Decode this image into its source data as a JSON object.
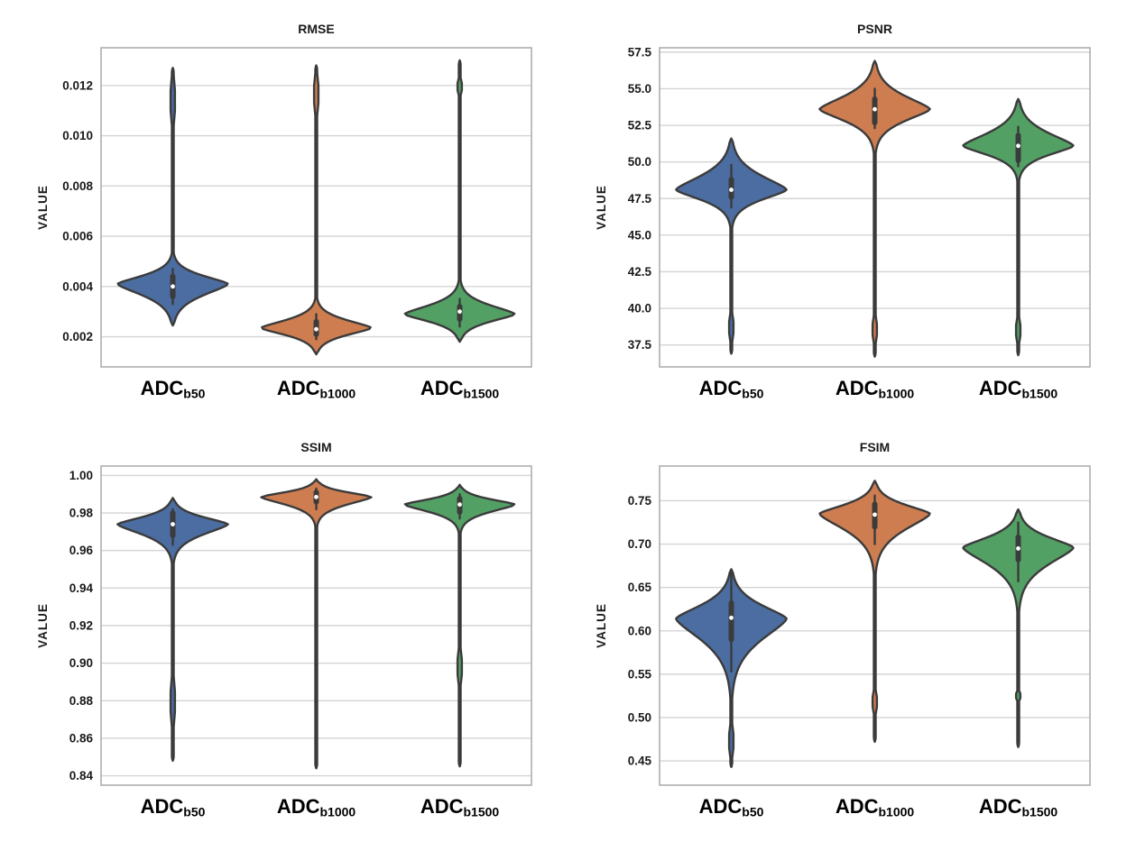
{
  "figure": {
    "background": "#ffffff",
    "rows": 2,
    "cols": 2,
    "panel_order": [
      "RMSE",
      "PSNR",
      "SSIM",
      "FSIM"
    ]
  },
  "palette": {
    "blue": "#4B6DA1",
    "orange": "#CE7D50",
    "green": "#53A065",
    "outline": "#3b3b3b",
    "grid": "#d4d4d4",
    "frame": "#aeaeae",
    "text": "#1a1a1a",
    "category_text": "#000000",
    "median_dot": "#ffffff"
  },
  "categories": [
    {
      "base": "ADC",
      "sub": "b50"
    },
    {
      "base": "ADC",
      "sub": "b1000"
    },
    {
      "base": "ADC",
      "sub": "b1500"
    }
  ],
  "chart_data": [
    {
      "type": "violin",
      "title": "RMSE",
      "ylabel": "VALUE",
      "grid": true,
      "legend": false,
      "ylim": [
        0.0008,
        0.0135
      ],
      "yticks": [
        {
          "v": 0.002,
          "label": "0.002"
        },
        {
          "v": 0.004,
          "label": "0.004"
        },
        {
          "v": 0.006,
          "label": "0.006"
        },
        {
          "v": 0.008,
          "label": "0.008"
        },
        {
          "v": 0.01,
          "label": "0.010"
        },
        {
          "v": 0.012,
          "label": "0.012"
        }
      ],
      "violins": [
        {
          "category": "ADC_b50",
          "color": "blue",
          "tail_min": 0.00245,
          "tail_max": 0.0127,
          "body_min": 0.00245,
          "body_max": 0.0053,
          "peak": 0.0041,
          "q1": 0.0036,
          "q3": 0.0044,
          "median": 0.004,
          "whisker_lo": 0.0033,
          "whisker_hi": 0.0047,
          "blob": [
            0.0104,
            0.0124
          ]
        },
        {
          "category": "ADC_b1000",
          "color": "orange",
          "tail_min": 0.0013,
          "tail_max": 0.0128,
          "body_min": 0.0013,
          "body_max": 0.0035,
          "peak": 0.00235,
          "q1": 0.0021,
          "q3": 0.0026,
          "median": 0.0023,
          "whisker_lo": 0.0019,
          "whisker_hi": 0.0029,
          "blob": [
            0.0108,
            0.0125
          ]
        },
        {
          "category": "ADC_b1500",
          "color": "green",
          "tail_min": 0.0018,
          "tail_max": 0.013,
          "body_min": 0.0018,
          "body_max": 0.0042,
          "peak": 0.0029,
          "q1": 0.0027,
          "q3": 0.0032,
          "median": 0.003,
          "whisker_lo": 0.0024,
          "whisker_hi": 0.0035,
          "blob": [
            0.0116,
            0.0123
          ]
        }
      ]
    },
    {
      "type": "violin",
      "title": "PSNR",
      "ylabel": "VALUE",
      "grid": true,
      "legend": false,
      "ylim": [
        36.0,
        57.8
      ],
      "yticks": [
        {
          "v": 37.5,
          "label": "37.5"
        },
        {
          "v": 40.0,
          "label": "40.0"
        },
        {
          "v": 42.5,
          "label": "42.5"
        },
        {
          "v": 45.0,
          "label": "45.0"
        },
        {
          "v": 47.5,
          "label": "47.5"
        },
        {
          "v": 50.0,
          "label": "50.0"
        },
        {
          "v": 52.5,
          "label": "52.5"
        },
        {
          "v": 55.0,
          "label": "55.0"
        },
        {
          "v": 57.5,
          "label": "57.5"
        }
      ],
      "violins": [
        {
          "category": "ADC_b50",
          "color": "blue",
          "tail_min": 36.9,
          "tail_max": 51.6,
          "body_min": 45.6,
          "body_max": 51.6,
          "peak": 48.1,
          "q1": 47.6,
          "q3": 48.8,
          "median": 48.1,
          "whisker_lo": 46.9,
          "whisker_hi": 49.8,
          "blob": [
            37.7,
            39.7
          ]
        },
        {
          "category": "ADC_b1000",
          "color": "orange",
          "tail_min": 36.7,
          "tail_max": 56.9,
          "body_min": 50.7,
          "body_max": 56.9,
          "peak": 53.6,
          "q1": 52.7,
          "q3": 54.3,
          "median": 53.6,
          "whisker_lo": 52.3,
          "whisker_hi": 55.0,
          "blob": [
            37.6,
            39.5
          ]
        },
        {
          "category": "ADC_b1500",
          "color": "green",
          "tail_min": 36.8,
          "tail_max": 54.3,
          "body_min": 48.8,
          "body_max": 54.3,
          "peak": 51.1,
          "q1": 50.1,
          "q3": 51.8,
          "median": 51.1,
          "whisker_lo": 49.7,
          "whisker_hi": 52.4,
          "blob": [
            37.6,
            39.4
          ]
        }
      ]
    },
    {
      "type": "violin",
      "title": "SSIM",
      "ylabel": "VALUE",
      "grid": true,
      "legend": false,
      "ylim": [
        0.835,
        1.005
      ],
      "yticks": [
        {
          "v": 0.84,
          "label": "0.84"
        },
        {
          "v": 0.86,
          "label": "0.86"
        },
        {
          "v": 0.88,
          "label": "0.88"
        },
        {
          "v": 0.9,
          "label": "0.90"
        },
        {
          "v": 0.92,
          "label": "0.92"
        },
        {
          "v": 0.94,
          "label": "0.94"
        },
        {
          "v": 0.96,
          "label": "0.96"
        },
        {
          "v": 0.98,
          "label": "0.98"
        },
        {
          "v": 1.0,
          "label": "1.00"
        }
      ],
      "violins": [
        {
          "category": "ADC_b50",
          "color": "blue",
          "tail_min": 0.848,
          "tail_max": 0.988,
          "body_min": 0.954,
          "body_max": 0.988,
          "peak": 0.974,
          "q1": 0.968,
          "q3": 0.98,
          "median": 0.974,
          "whisker_lo": 0.963,
          "whisker_hi": 0.982,
          "blob": [
            0.866,
            0.893
          ]
        },
        {
          "category": "ADC_b1000",
          "color": "orange",
          "tail_min": 0.844,
          "tail_max": 0.998,
          "body_min": 0.9735,
          "body_max": 0.998,
          "peak": 0.9885,
          "q1": 0.986,
          "q3": 0.991,
          "median": 0.9885,
          "whisker_lo": 0.982,
          "whisker_hi": 0.993
        },
        {
          "category": "ADC_b1500",
          "color": "green",
          "tail_min": 0.845,
          "tail_max": 0.995,
          "body_min": 0.97,
          "body_max": 0.995,
          "peak": 0.9845,
          "q1": 0.9805,
          "q3": 0.9877,
          "median": 0.9845,
          "whisker_lo": 0.977,
          "whisker_hi": 0.99,
          "blob": [
            0.888,
            0.908
          ]
        }
      ]
    },
    {
      "type": "violin",
      "title": "FSIM",
      "ylabel": "VALUE",
      "grid": true,
      "legend": false,
      "ylim": [
        0.422,
        0.79
      ],
      "yticks": [
        {
          "v": 0.45,
          "label": "0.45"
        },
        {
          "v": 0.5,
          "label": "0.50"
        },
        {
          "v": 0.55,
          "label": "0.55"
        },
        {
          "v": 0.6,
          "label": "0.60"
        },
        {
          "v": 0.65,
          "label": "0.65"
        },
        {
          "v": 0.7,
          "label": "0.70"
        },
        {
          "v": 0.75,
          "label": "0.75"
        }
      ],
      "violins": [
        {
          "category": "ADC_b50",
          "color": "blue",
          "tail_min": 0.443,
          "tail_max": 0.671,
          "body_min": 0.525,
          "body_max": 0.671,
          "peak": 0.614,
          "q1": 0.59,
          "q3": 0.632,
          "median": 0.615,
          "whisker_lo": 0.553,
          "whisker_hi": 0.668,
          "blob": [
            0.453,
            0.493
          ]
        },
        {
          "category": "ADC_b1000",
          "color": "orange",
          "tail_min": 0.472,
          "tail_max": 0.773,
          "body_min": 0.668,
          "body_max": 0.773,
          "peak": 0.735,
          "q1": 0.72,
          "q3": 0.746,
          "median": 0.734,
          "whisker_lo": 0.7,
          "whisker_hi": 0.756,
          "blob": [
            0.504,
            0.532
          ]
        },
        {
          "category": "ADC_b1500",
          "color": "green",
          "tail_min": 0.466,
          "tail_max": 0.74,
          "body_min": 0.625,
          "body_max": 0.74,
          "peak": 0.696,
          "q1": 0.682,
          "q3": 0.708,
          "median": 0.695,
          "whisker_lo": 0.657,
          "whisker_hi": 0.725,
          "blob": [
            0.519,
            0.531
          ]
        }
      ]
    }
  ]
}
